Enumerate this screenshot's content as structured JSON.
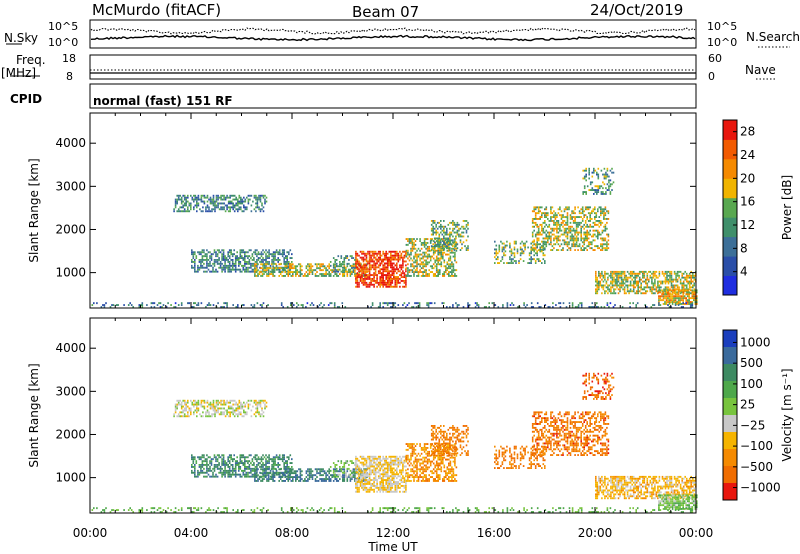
{
  "header": {
    "station": "McMurdo (fitACF)",
    "beam": "Beam 07",
    "date": "24/Oct/2019"
  },
  "side_labels": {
    "nsky": "N.Sky",
    "nsearch": "N.Search",
    "freq": "Freq.",
    "mhz": "[MHz]",
    "nave": "Nave",
    "cpid": "CPID"
  },
  "noise_panel": {
    "ylabel_top": "10^5",
    "ylabel_bottom": "10^0",
    "rlabel_top": "10^5",
    "rlabel_bottom": "10^0"
  },
  "freq_panel": {
    "left_top": "18",
    "left_bottom": "8",
    "right_top": "60",
    "right_bottom": "0"
  },
  "cpid_text": "normal (fast) 151 RF",
  "colors": {
    "power": [
      "#1f2ee0",
      "#2a4ea8",
      "#3c6f98",
      "#3f8f6b",
      "#59a850",
      "#f0b400",
      "#f58a00",
      "#f25a00",
      "#e8160d"
    ],
    "velocity": [
      "#1a3ebd",
      "#3a6a9c",
      "#3d8a62",
      "#4ea84b",
      "#78c43e",
      "#c8c8c8",
      "#f5b400",
      "#f58a00",
      "#f06d00",
      "#e8160d"
    ]
  },
  "chart_data": [
    {
      "type": "heatmap",
      "name": "power",
      "ylabel": "Slant Range [km]",
      "yticks": [
        1000,
        2000,
        3000,
        4000
      ],
      "ylim": [
        180,
        4700
      ],
      "x_ticks": [
        "00:00",
        "04:00",
        "08:00",
        "12:00",
        "16:00",
        "20:00",
        "00:00"
      ],
      "colorbar_label": "Power [dB]",
      "colorbar_ticks": [
        "4",
        "8",
        "12",
        "16",
        "20",
        "24",
        "28"
      ],
      "colorbar_range": [
        0,
        30
      ]
    },
    {
      "type": "heatmap",
      "name": "velocity",
      "ylabel": "Slant Range [km]",
      "yticks": [
        1000,
        2000,
        3000,
        4000
      ],
      "ylim": [
        180,
        4700
      ],
      "x_ticks": [
        "00:00",
        "04:00",
        "08:00",
        "12:00",
        "16:00",
        "20:00",
        "00:00"
      ],
      "xlabel": "Time UT",
      "colorbar_label": "Velocity [m s⁻¹]",
      "colorbar_ticks": [
        "1000",
        "500",
        "100",
        "25",
        "−25",
        "−100",
        "−500",
        "−1000"
      ]
    }
  ]
}
